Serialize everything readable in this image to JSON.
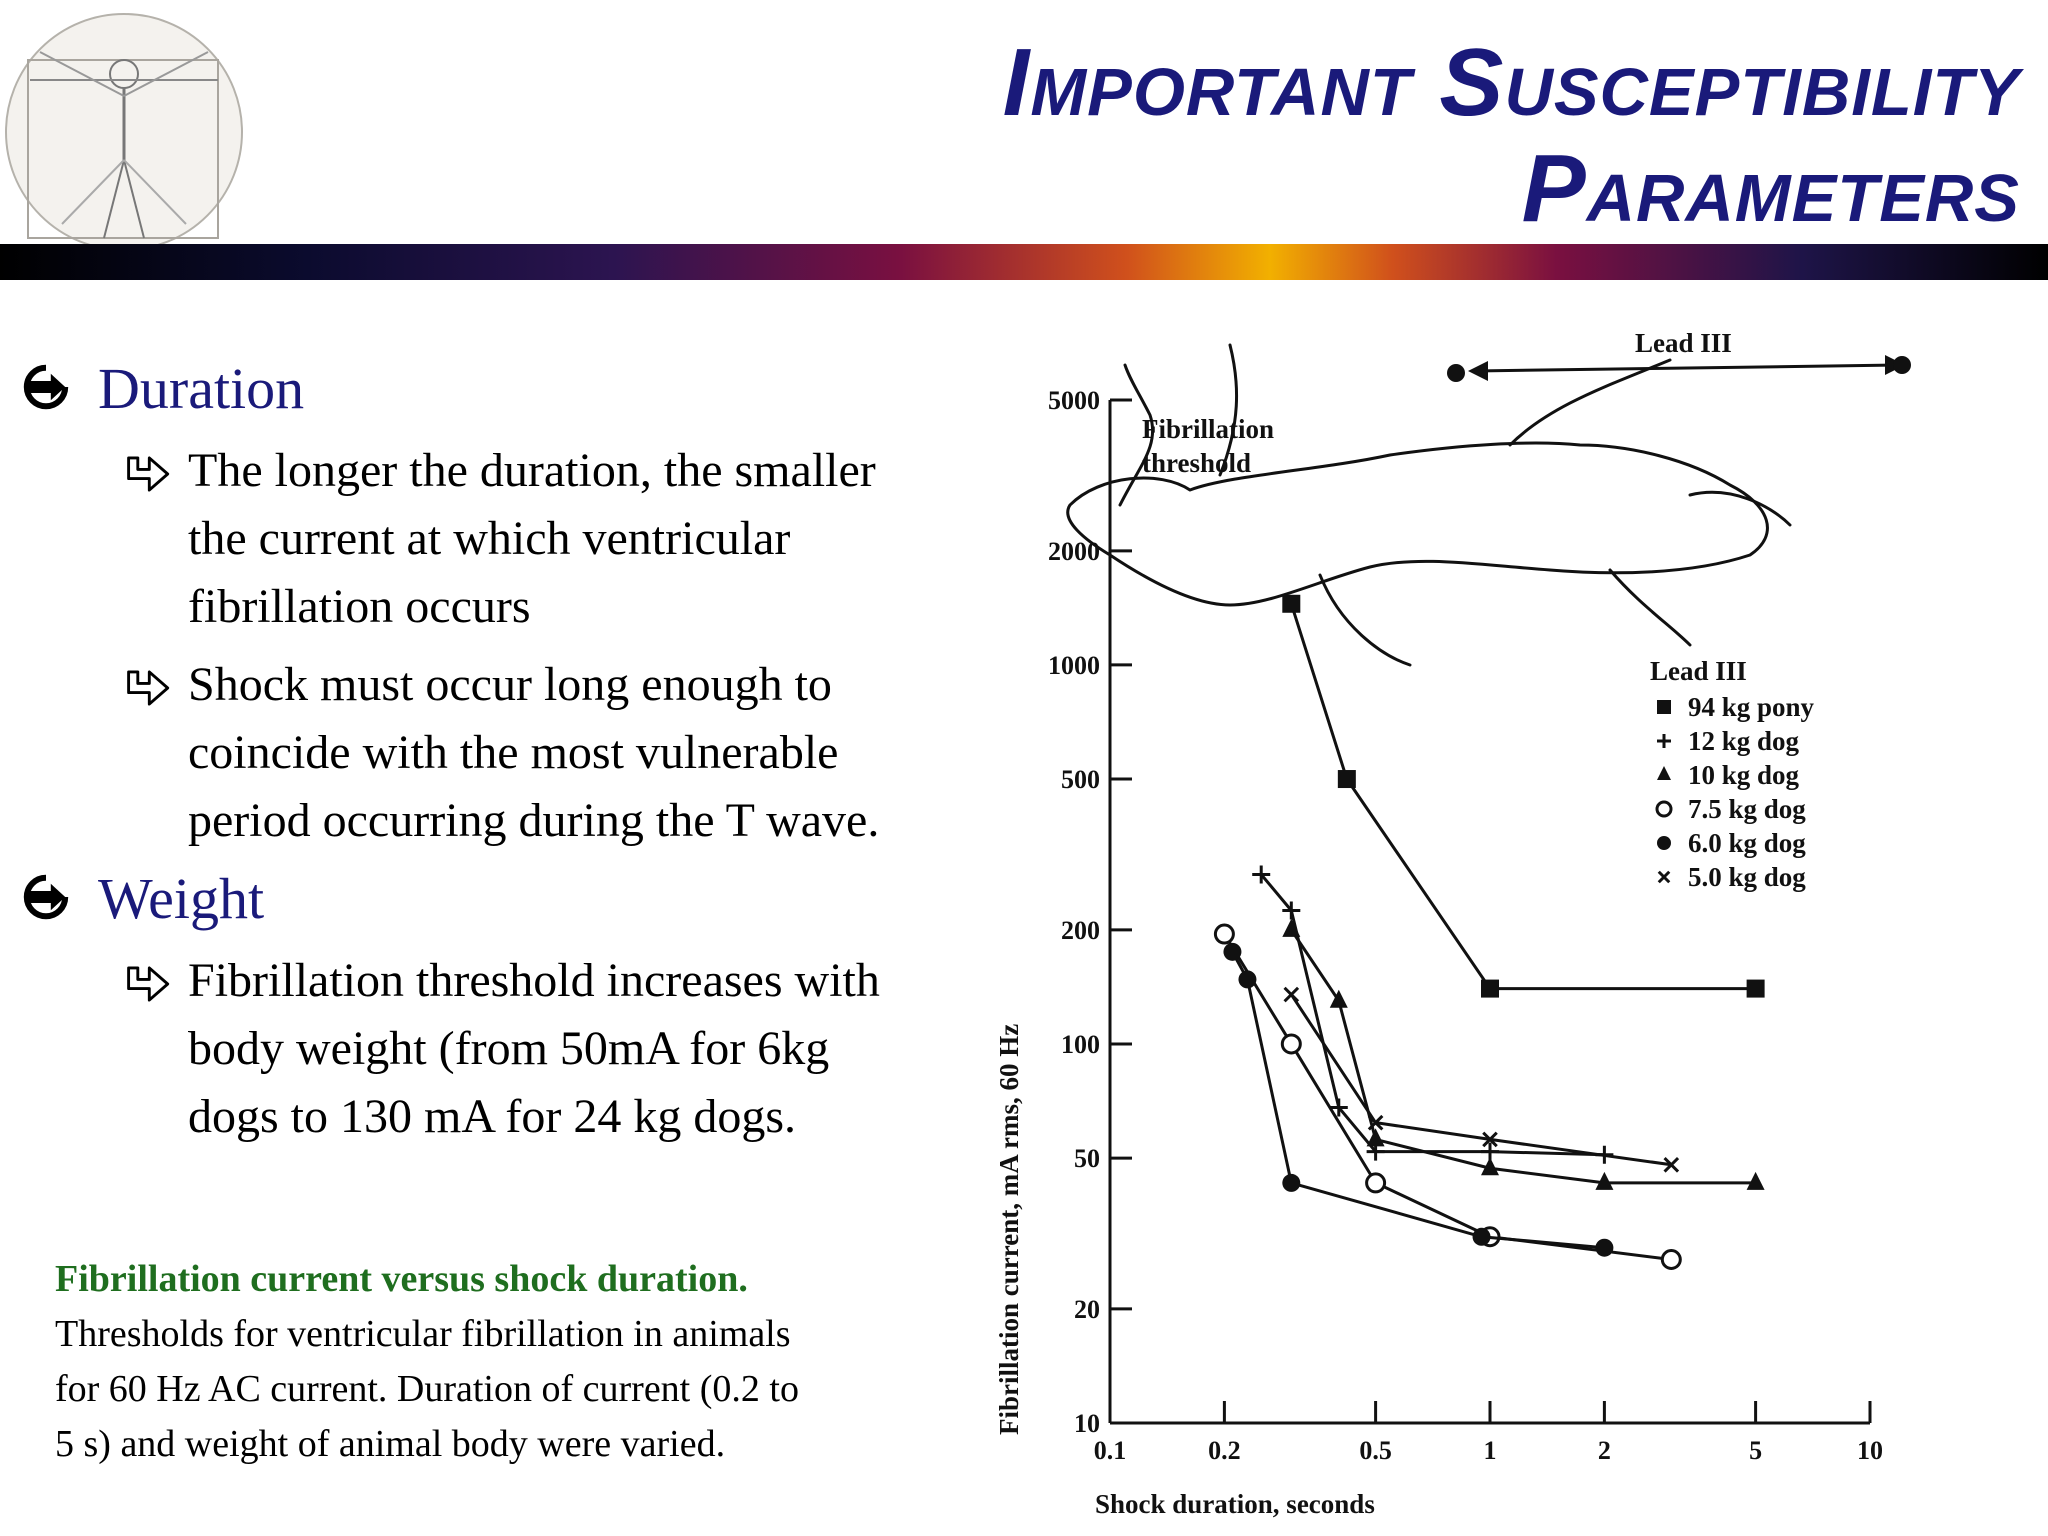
{
  "slide": {
    "title_line1": "Important Susceptibility",
    "title_line2": "Parameters"
  },
  "bullets": [
    {
      "label": "Duration",
      "subs": [
        {
          "lines": [
            "The longer the duration, the smaller",
            "the current at which ventricular",
            "fibrillation occurs"
          ]
        },
        {
          "lines": [
            "Shock must occur long enough to",
            "coincide with the most vulnerable",
            "period occurring during the T wave."
          ]
        }
      ]
    },
    {
      "label": "Weight",
      "subs": [
        {
          "lines": [
            "Fibrillation threshold increases with",
            "body weight (from 50mA for 6kg",
            "dogs to 130 mA for 24 kg dogs."
          ]
        }
      ]
    }
  ],
  "caption": {
    "title": "Fibrillation current versus shock duration.",
    "line1": "Thresholds for ventricular fibrillation in animals",
    "line2": "for 60 Hz AC current. Duration of current (0.2 to",
    "line3": "5 s) and weight of animal body were varied."
  },
  "chart_data": {
    "type": "line",
    "title": "Fibrillation threshold",
    "xlabel": "Shock duration, seconds",
    "ylabel": "Fibrillation current, mA rms, 60 Hz",
    "xscale": "log",
    "yscale": "log",
    "xlim": [
      0.1,
      10
    ],
    "ylim": [
      10,
      5000
    ],
    "x_ticks": [
      0.1,
      0.2,
      0.5,
      1,
      2,
      5,
      10
    ],
    "y_ticks": [
      10,
      20,
      50,
      100,
      200,
      500,
      1000,
      2000,
      5000
    ],
    "grid": false,
    "legend_title": "Lead III",
    "legend_position": "right",
    "diagram_label": "Lead III",
    "series": [
      {
        "name": "94 kg pony",
        "marker": "square",
        "x": [
          0.3,
          0.42,
          1.0,
          5.0
        ],
        "y": [
          1450,
          500,
          140,
          140
        ]
      },
      {
        "name": "12 kg dog",
        "marker": "plus",
        "x": [
          0.25,
          0.3,
          0.4,
          0.5,
          1.0,
          2.0
        ],
        "y": [
          280,
          225,
          68,
          52,
          52,
          51
        ]
      },
      {
        "name": "10 kg dog",
        "marker": "triangle",
        "x": [
          0.3,
          0.4,
          0.5,
          1.0,
          2.0,
          5.0
        ],
        "y": [
          200,
          130,
          56,
          47,
          43,
          43
        ]
      },
      {
        "name": "7.5 kg dog",
        "marker": "circle-open",
        "x": [
          0.2,
          0.3,
          0.5,
          1.0,
          3.0
        ],
        "y": [
          195,
          100,
          43,
          31,
          27
        ]
      },
      {
        "name": "6.0 kg dog",
        "marker": "circle-filled",
        "x": [
          0.21,
          0.23,
          0.3,
          0.95,
          2.0
        ],
        "y": [
          175,
          148,
          43,
          31,
          29
        ]
      },
      {
        "name": "5.0 kg dog",
        "marker": "x",
        "x": [
          0.3,
          0.5,
          1.0,
          3.0
        ],
        "y": [
          135,
          62,
          56,
          48
        ]
      }
    ]
  }
}
